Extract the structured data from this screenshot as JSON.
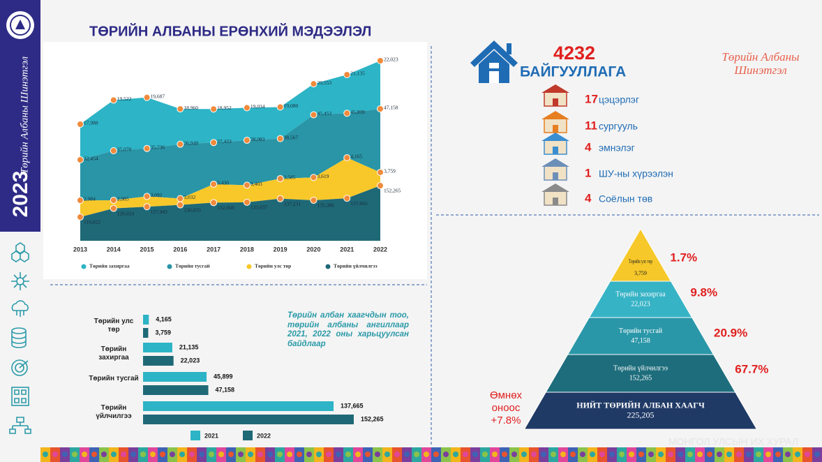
{
  "sidebar": {
    "brand": "Төрийн Албаны Шинэтгэл",
    "year": "2023"
  },
  "header": {
    "title": "ТӨРИЙН АЛБАНЫ ЕРӨНХИЙ МЭДЭЭЛЭЛ",
    "brand": "Төрийн Албаны Шинэтгэл"
  },
  "chart_data": [
    {
      "type": "area",
      "categories": [
        "2013",
        "2014",
        "2015",
        "2016",
        "2017",
        "2018",
        "2019",
        "2020",
        "2021",
        "2022"
      ],
      "series": [
        {
          "name": "Төрийн захиргаа",
          "color": "#2db4c6",
          "values": [
            17988,
            19522,
            19687,
            18960,
            18952,
            19034,
            19080,
            20553,
            21135,
            22023
          ],
          "value_labels": [
            "17,988",
            "19,522",
            "19,687",
            "18,960",
            "18,952",
            "19,034",
            "19,080",
            "20,553",
            "21,135",
            "22,023"
          ]
        },
        {
          "name": "Төрийн тусгай",
          "color": "#2995a6",
          "values": [
            32454,
            35070,
            35736,
            36949,
            37433,
            38083,
            38567,
            45453,
            45899,
            47158
          ],
          "value_labels": [
            "32,454",
            "35,070",
            "35,736",
            "36,949",
            "37,433",
            "38,083",
            "38,567",
            "45,453",
            "45,899",
            "47,158"
          ]
        },
        {
          "name": "Төрийн улс төр",
          "color": "#f8c82a",
          "values": [
            2984,
            2985,
            3092,
            3032,
            3430,
            3403,
            3585,
            3619,
            4165,
            3759
          ],
          "value_labels": [
            "2,984",
            "2,985",
            "3,092",
            "3,032",
            "3,430",
            "3,403",
            "3,585",
            "3,619",
            "4,165",
            "3,759"
          ]
        },
        {
          "name": "Төрийн үйлчилгээ",
          "color": "#1f6977",
          "values": [
            116022,
            126024,
            127943,
            130033,
            132660,
            133037,
            137231,
            135386,
            137665,
            152265
          ],
          "value_labels": [
            "116,022",
            "126,024",
            "127,943",
            "130,033",
            "132,660",
            "133,037",
            "137,231",
            "135,386",
            "137,665",
            "152,265"
          ]
        }
      ],
      "marker_color": "#f08a3c"
    },
    {
      "type": "hbar",
      "annotation": "Төрийн албан хаагчдын тоо, төрийн албаны ангиллаар 2021, 2022 оны харьцуулсан байдлаар",
      "categories": [
        "Төрийн улс төр",
        "Төрийн захиргаа",
        "Төрийн тусгай",
        "Төрийн үйлчилгээ"
      ],
      "series": [
        {
          "name": "2021",
          "color": "#2db4c6",
          "values": [
            4165,
            21135,
            45899,
            137665
          ],
          "value_labels": [
            "4,165",
            "21,135",
            "45,899",
            "137,665"
          ]
        },
        {
          "name": "2022",
          "color": "#1f6977",
          "values": [
            3759,
            22023,
            47158,
            152265
          ],
          "value_labels": [
            "3,759",
            "22,023",
            "47,158",
            "152,265"
          ]
        }
      ]
    }
  ],
  "organizations": {
    "total": "4232",
    "label": "БАЙГУУЛЛАГА",
    "items": [
      {
        "count": "17",
        "label": "цэцэрлэг"
      },
      {
        "count": "11",
        "label": "сургууль"
      },
      {
        "count": "4",
        "label": "эмнэлэг"
      },
      {
        "count": "1",
        "label": "ШУ-ны хүрээлэн"
      },
      {
        "count": "4",
        "label": "Соёлын төв"
      }
    ]
  },
  "pyramid": {
    "levels": [
      {
        "name": "Төрийн улс төр",
        "count": "3,759",
        "percent": "1.7%"
      },
      {
        "name": "Төрийн захиргаа",
        "count": "22,023",
        "percent": "9.8%"
      },
      {
        "name": "Төрийн тусгай",
        "count": "47,158",
        "percent": "20.9%"
      },
      {
        "name": "Төрийн үйлчилгээ",
        "count": "152,265",
        "percent": "67.7%"
      }
    ],
    "total": {
      "name": "НИЙТ ТӨРИЙН АЛБАН ХААГЧ",
      "count": "225,205"
    },
    "change": "Өмнөх оноос +7.8%"
  },
  "footer": "МОНГОЛ УЛСЫН ИХ ХУРАЛ"
}
